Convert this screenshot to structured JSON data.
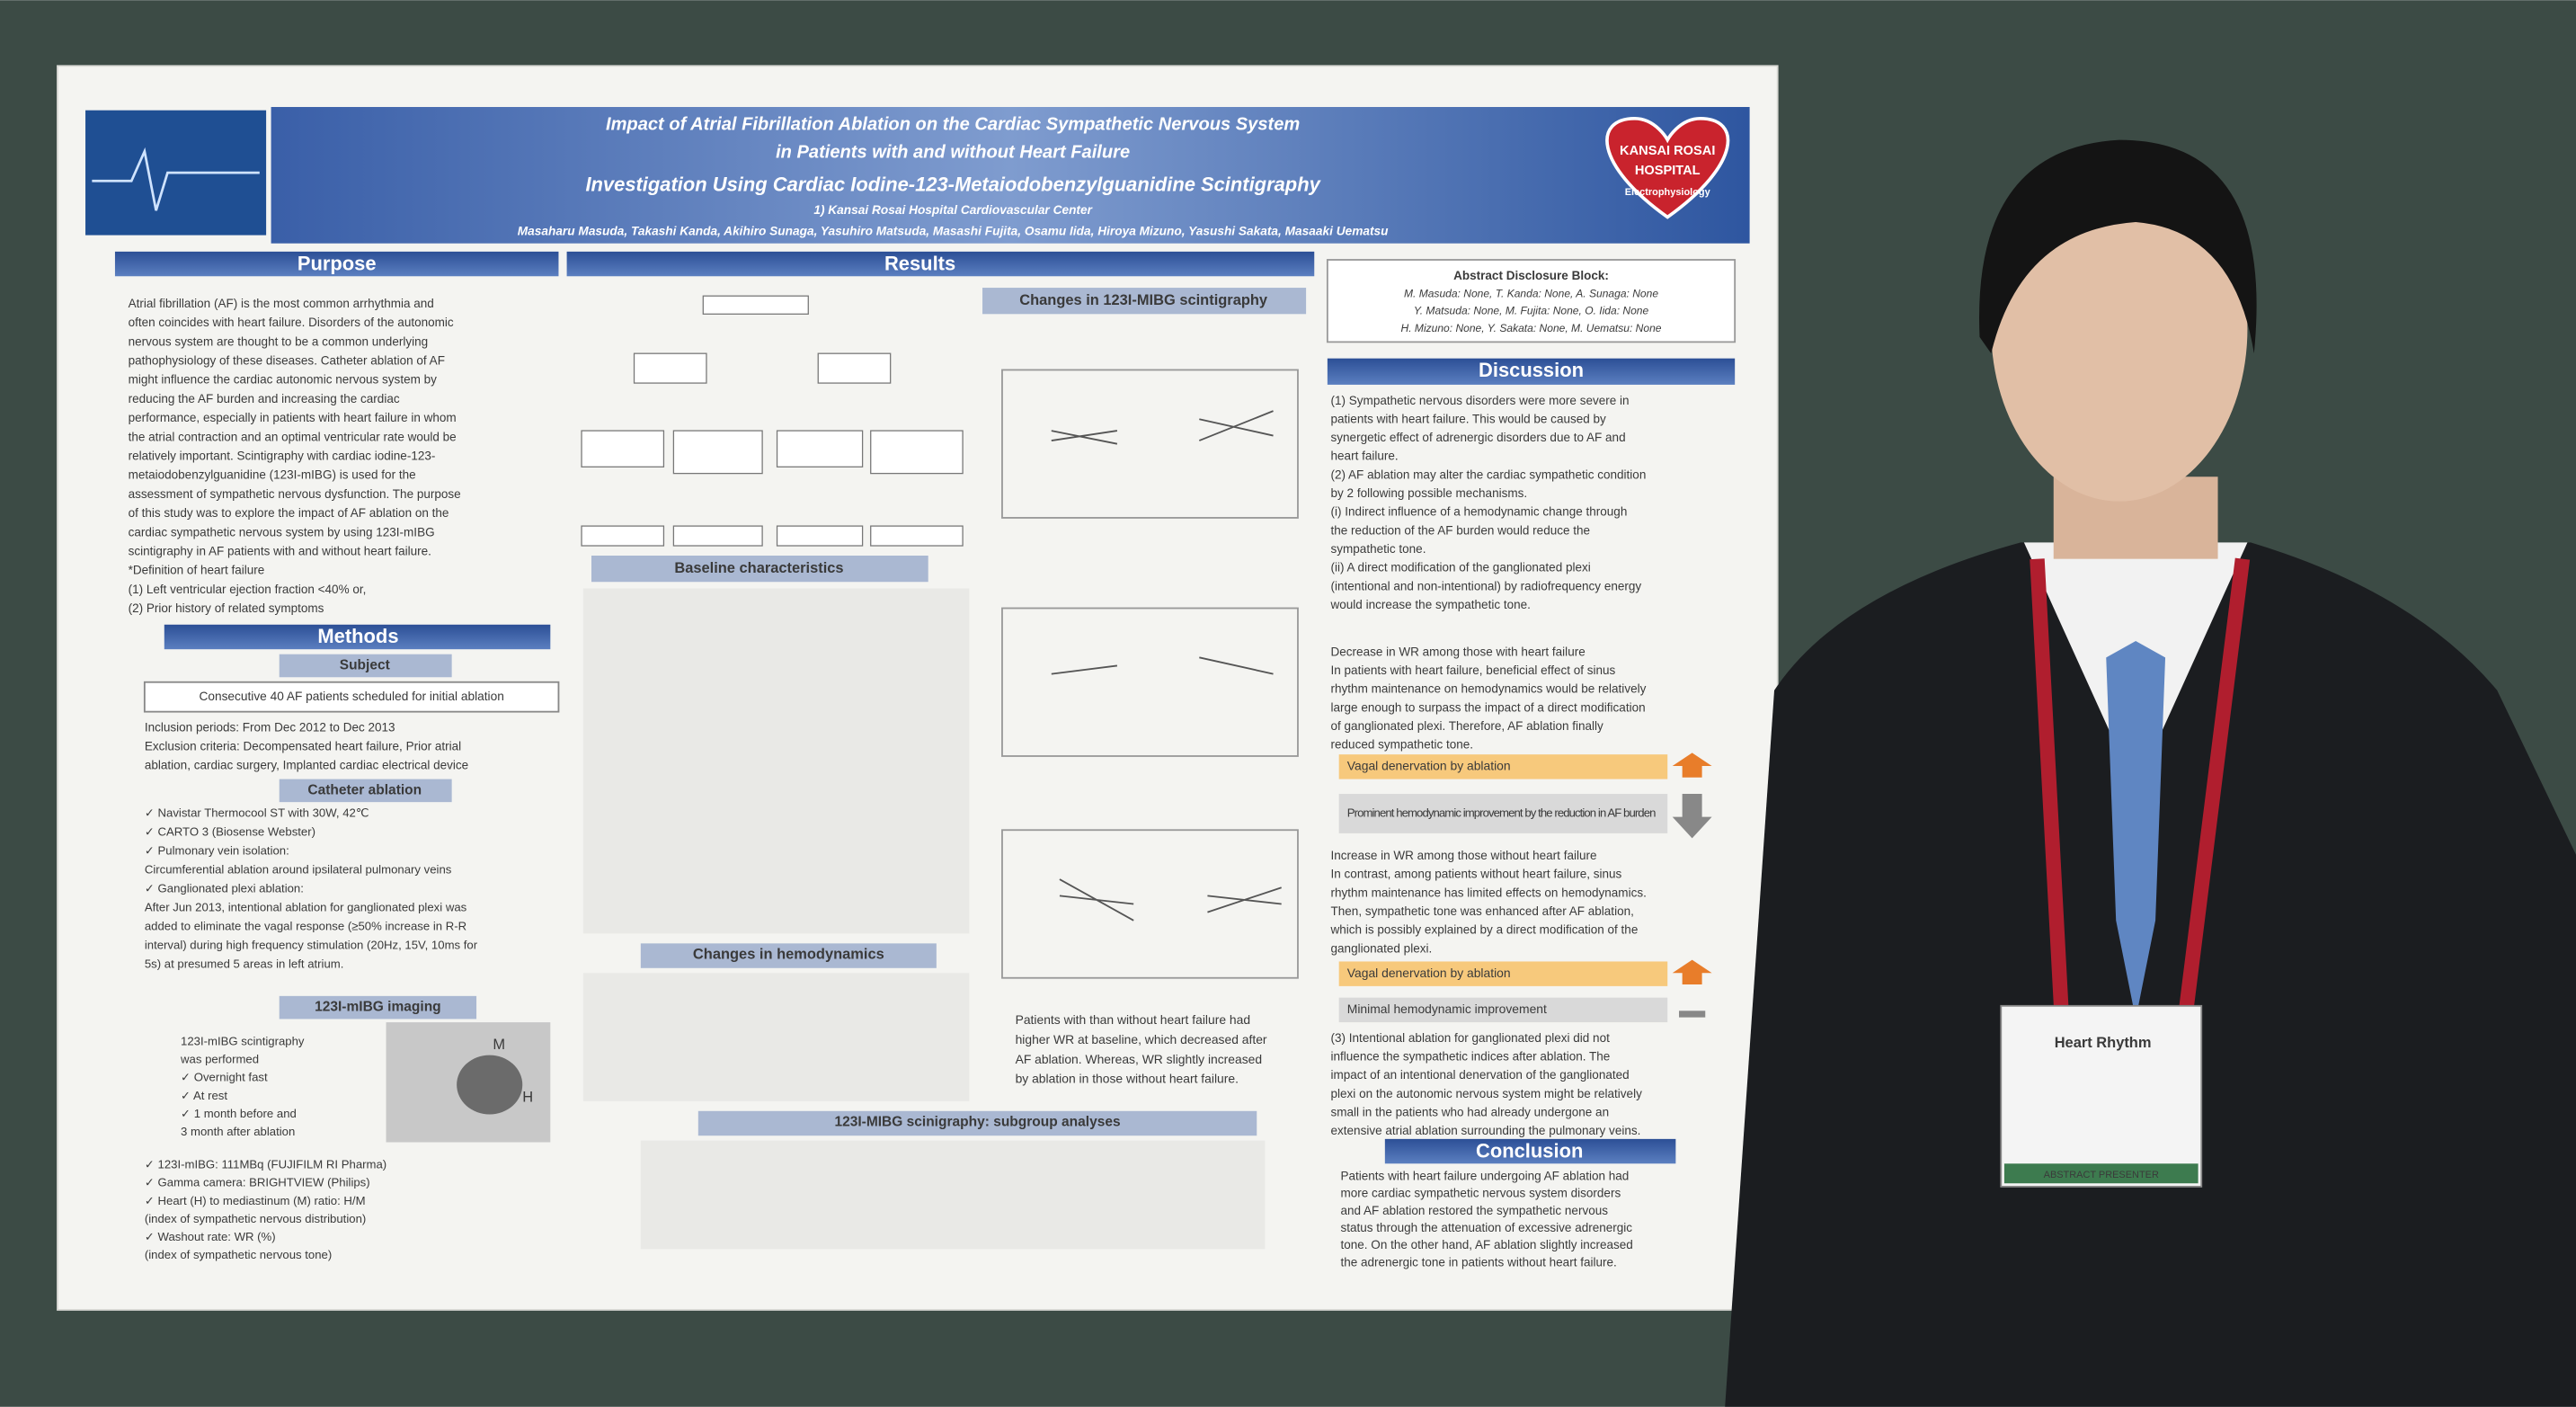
{
  "header": {
    "title": [
      "Impact of Atrial Fibrillation Ablation on the Cardiac Sympathetic Nervous System",
      "in Patients with and without Heart Failure",
      "Investigation Using Cardiac Iodine-123-Metaiodobenzylguanidine Scintigraphy"
    ],
    "affiliation": "1) Kansai Rosai Hospital Cardiovascular Center",
    "authors": "Masaharu Masuda, Takashi Kanda, Akihiro Sunaga, Yasuhiro Matsuda, Masashi Fujita, Osamu Iida, Hiroya Mizuno, Yasushi Sakata, Masaaki Uematsu",
    "logo": [
      "KANSAI ROSAI",
      "HOSPITAL",
      "Electrophysiology"
    ]
  },
  "purpose": {
    "heading": "Purpose",
    "lines": [
      "Atrial fibrillation (AF) is the most common arrhythmia and",
      "often coincides with heart failure. Disorders of the autonomic",
      "nervous system are thought to be a common underlying",
      "pathophysiology of these diseases. Catheter ablation of AF",
      "might influence the cardiac autonomic nervous system by",
      "reducing the AF burden and increasing the cardiac",
      "performance, especially in patients with heart failure in whom",
      "the atrial contraction and an optimal ventricular rate would be",
      "relatively important. Scintigraphy with cardiac iodine-123-",
      "metaiodobenzylguanidine (123I-mIBG) is used for the",
      "assessment of sympathetic nervous dysfunction. The purpose",
      "of this study was to explore the impact of AF ablation on the",
      "cardiac sympathetic nervous system by using 123I-mIBG",
      "scintigraphy in AF patients with and without heart failure.",
      "*Definition of heart failure",
      "(1) Left ventricular ejection fraction <40% or,",
      "(2) Prior history of related symptoms"
    ]
  },
  "methods": {
    "heading": "Methods",
    "subject_heading": "Subject",
    "subject": "Consecutive 40 AF patients scheduled for initial ablation",
    "lines": [
      "Inclusion periods: From Dec 2012 to Dec 2013",
      "Exclusion criteria: Decompensated heart failure, Prior atrial",
      "ablation, cardiac surgery, Implanted cardiac electrical device"
    ],
    "catheter_heading": "Catheter ablation",
    "catheter_lines": [
      "✓ Navistar Thermocool ST with 30W, 42℃",
      "✓ CARTO 3 (Biosense Webster)",
      "✓ Pulmonary vein isolation:",
      "   Circumferential ablation around ipsilateral pulmonary veins",
      "✓ Ganglionated plexi ablation:",
      "   After Jun 2013, intentional ablation for ganglionated plexi was",
      "   added to eliminate the vagal response (≥50% increase in R-R",
      "   interval) during high frequency stimulation (20Hz, 15V, 10ms for",
      "   5s) at presumed 5 areas in left atrium."
    ],
    "imaging_heading": "123I-mIBG imaging",
    "imaging_lines": [
      "123I-mIBG scintigraphy",
      "was performed",
      "✓ Overnight fast",
      "✓ At rest",
      "✓ 1 month before and",
      "   3 month after ablation"
    ],
    "imaging_details": [
      "✓ 123I-mIBG: 111MBq (FUJIFILM RI Pharma)",
      "✓ Gamma camera: BRIGHTVIEW (Philips)",
      "✓ Heart (H) to mediastinum (M) ratio: H/M",
      "   (index of sympathetic nervous distribution)",
      "✓ Washout rate: WR (%)",
      "   (index of sympathetic nervous tone)"
    ],
    "image_labels": [
      "M",
      "H"
    ]
  },
  "results": {
    "heading": "Results",
    "scint_heading": "Changes in 123I-MIBG scintigraphy",
    "baseline_heading": "Baseline characteristics",
    "hemo_heading": "Changes in hemodynamics",
    "subgroup_heading": "123I-MIBG scinigraphy: subgroup analyses",
    "text": [
      "Patients with than without heart failure had",
      "higher WR at baseline, which decreased after",
      "AF ablation. Whereas, WR slightly increased",
      "by ablation in those without heart failure."
    ]
  },
  "disclosure": {
    "heading": "Abstract Disclosure Block:",
    "lines": [
      "M. Masuda: None, T. Kanda: None, A. Sunaga: None",
      "Y. Matsuda: None, M. Fujita: None, O. Iida: None",
      "H. Mizuno: None, Y. Sakata: None, M. Uematsu: None"
    ]
  },
  "discussion": {
    "heading": "Discussion",
    "blocks": [
      [
        "(1) Sympathetic nervous disorders were more severe in",
        "patients with heart failure. This would be caused by",
        "synergetic effect of adrenergic disorders due to AF and",
        "heart failure.",
        "(2) AF ablation may alter the cardiac sympathetic condition",
        "by 2 following possible mechanisms.",
        "(i) Indirect influence of a hemodynamic change through",
        "the reduction of the AF burden would reduce the",
        "sympathetic tone.",
        "(ii) A direct modification of the ganglionated plexi",
        "(intentional and non-intentional) by radiofrequency energy",
        "would increase the sympathetic tone."
      ],
      [
        "Decrease in WR among those with heart failure",
        "In patients with heart failure, beneficial effect of sinus",
        "rhythm maintenance on hemodynamics would be relatively",
        "large enough to surpass the impact of a direct modification",
        "of ganglionated plexi. Therefore, AF ablation finally",
        "reduced sympathetic tone."
      ],
      [
        "Increase in WR among those without heart failure",
        "In contrast, among patients without heart failure, sinus",
        "rhythm maintenance has limited effects on hemodynamics.",
        "Then, sympathetic tone was enhanced after AF ablation,",
        "which is possibly explained by a direct modification of the",
        "ganglionated plexi."
      ],
      [
        "(3) Intentional ablation for ganglionated plexi did not",
        "influence the sympathetic indices after ablation. The",
        "impact of an intentional denervation of the ganglionated",
        "plexi on the autonomic nervous system might be relatively",
        "small in the patients who had already undergone an",
        "extensive atrial ablation surrounding the pulmonary veins."
      ]
    ],
    "boxes": [
      "Vagal denervation by ablation",
      "Prominent hemodynamic improvement by the reduction in AF burden",
      "Vagal denervation by  ablation",
      "Minimal hemodynamic improvement"
    ]
  },
  "conclusion": {
    "heading": "Conclusion",
    "lines": [
      "Patients with heart failure undergoing AF ablation had",
      "more cardiac sympathetic nervous system disorders",
      "and AF ablation restored the sympathetic nervous",
      "status through the attenuation of excessive adrenergic",
      "tone. On the other hand, AF ablation slightly increased",
      "the adrenergic tone in patients without heart failure."
    ]
  },
  "badge": {
    "brand": "Heart Rhythm",
    "role": "ABSTRACT PRESENTER"
  }
}
